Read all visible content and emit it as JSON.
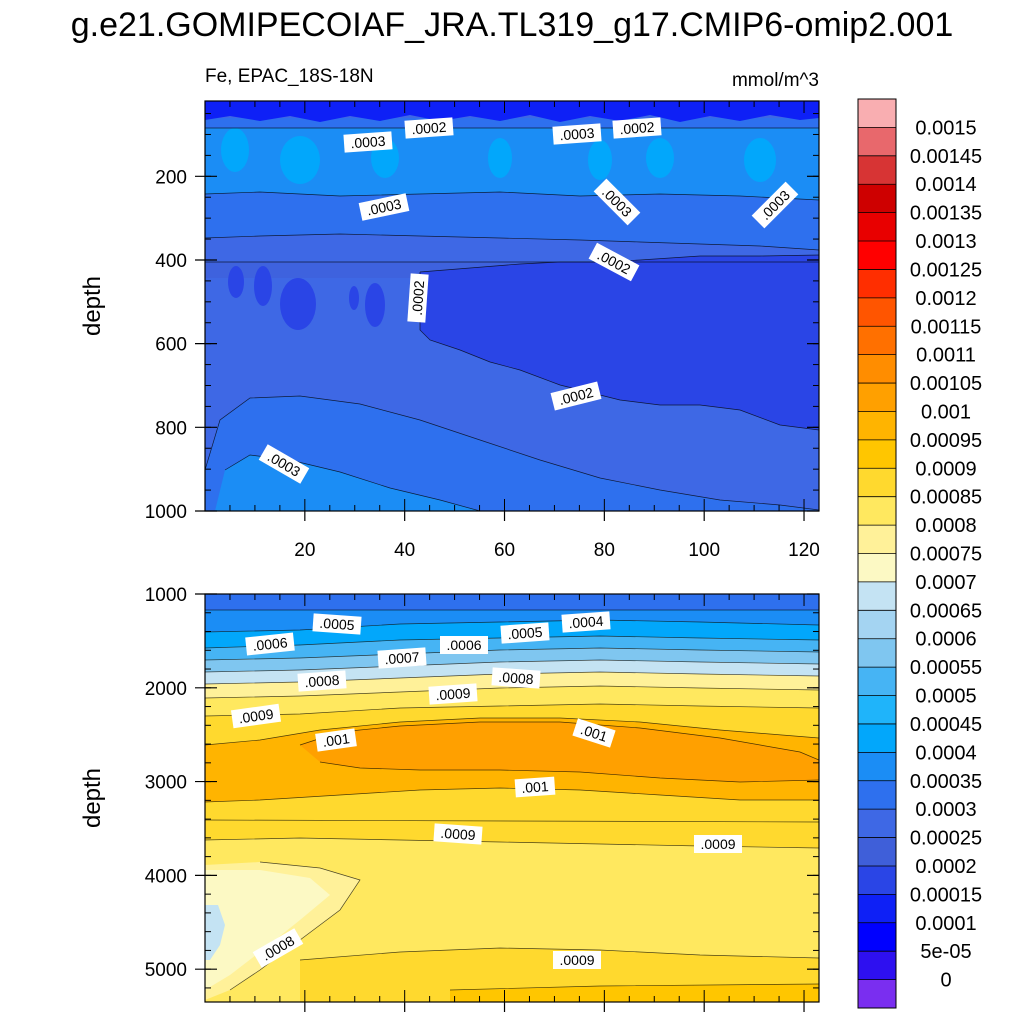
{
  "title": "g.e21.GOMIPECOIAF_JRA.TL319_g17.CMIP6-omip2.001",
  "chart_data": {
    "type": "heatmap",
    "variable_label": "Fe, EPAC_18S-18N",
    "units": "mmol/m^3",
    "colorbar_labels": [
      "0.0015",
      "0.00145",
      "0.0014",
      "0.00135",
      "0.0013",
      "0.00125",
      "0.0012",
      "0.00115",
      "0.0011",
      "0.00105",
      "0.001",
      "0.00095",
      "0.0009",
      "0.00085",
      "0.0008",
      "0.00075",
      "0.0007",
      "0.00065",
      "0.0006",
      "0.00055",
      "0.0005",
      "0.00045",
      "0.0004",
      "0.00035",
      "0.0003",
      "0.00025",
      "0.0002",
      "0.00015",
      "0.0001",
      "5e-05",
      "0"
    ],
    "colorbar_colors": [
      "#f9aeb1",
      "#e8686c",
      "#d73434",
      "#ce0000",
      "#e80000",
      "#ff0000",
      "#ff2e00",
      "#ff5500",
      "#ff7000",
      "#ff8d00",
      "#ffa000",
      "#ffb400",
      "#ffc600",
      "#ffd92e",
      "#ffe85f",
      "#fff199",
      "#fcf9c4",
      "#c4e3f3",
      "#a4d4f2",
      "#7fc6f0",
      "#46b4f4",
      "#1fb4fa",
      "#02a7fb",
      "#1b8df5",
      "#2e70ee",
      "#3e68e5",
      "#3f5fd9",
      "#2a45e6",
      "#0e20f6",
      "#0000ff",
      "#2e10f0",
      "#7a2ef0"
    ],
    "panels": [
      {
        "name": "upper",
        "ylabel": "depth",
        "xlim": [
          0,
          123
        ],
        "ylim": [
          1000,
          20
        ],
        "y_ticks": [
          200,
          400,
          600,
          800,
          1000
        ],
        "x_ticks": [
          20,
          40,
          60,
          80,
          100,
          120
        ],
        "contour_labels": [
          ".0003",
          ".0002",
          ".0003",
          ".0002",
          ".0003",
          ".0003",
          ".0003",
          ".0002",
          ".0002",
          ".0002",
          ".0003"
        ]
      },
      {
        "name": "lower",
        "ylabel": "depth",
        "xlim": [
          0,
          123
        ],
        "ylim": [
          5350,
          1000
        ],
        "y_ticks": [
          1000,
          2000,
          3000,
          4000,
          5000
        ],
        "x_ticks": [
          20,
          40,
          60,
          80,
          100,
          120
        ],
        "contour_labels": [
          ".0005",
          ".0006",
          ".0006",
          ".0005",
          ".0004",
          ".0007",
          ".0008",
          ".0008",
          ".0009",
          ".0009",
          ".001",
          ".001",
          ".001",
          ".0009",
          ".0009",
          ".0008",
          ".0009"
        ]
      }
    ]
  }
}
